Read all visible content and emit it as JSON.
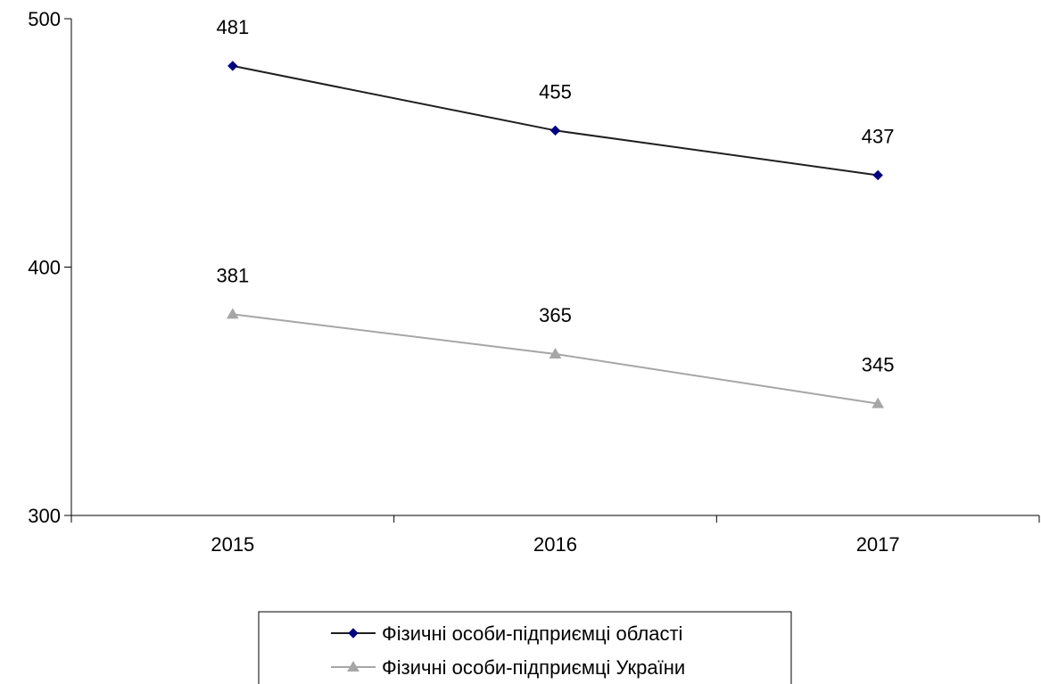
{
  "chart_data": {
    "type": "line",
    "categories": [
      "2015",
      "2016",
      "2017"
    ],
    "ylim": [
      300,
      500
    ],
    "yticks": [
      300,
      400,
      500
    ],
    "grid": false,
    "legend_position": "bottom",
    "series": [
      {
        "name": "Фізичні особи-підприємці області",
        "values": [
          481,
          455,
          437
        ],
        "labels": [
          "481",
          "455",
          "437"
        ],
        "color": "#1f1f1f",
        "marker": "diamond",
        "marker_color": "#000080"
      },
      {
        "name": "Фізичні особи-підприємці України",
        "values": [
          381,
          365,
          345
        ],
        "labels": [
          "381",
          "365",
          "345"
        ],
        "color": "#a6a6a6",
        "marker": "triangle",
        "marker_color": "#a6a6a6"
      }
    ]
  }
}
